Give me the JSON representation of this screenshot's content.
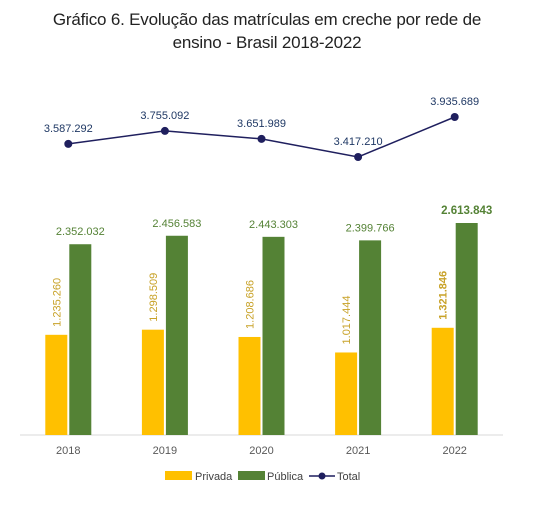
{
  "title": {
    "line1": "Gráfico 6. Evolução das matrículas em creche por rede de",
    "line2": "ensino - Brasil 2018-2022"
  },
  "chart_data": {
    "type": "bar",
    "title": "Gráfico 6. Evolução das matrículas em creche por rede de ensino - Brasil 2018-2022",
    "categories": [
      "2018",
      "2019",
      "2020",
      "2021",
      "2022"
    ],
    "series": [
      {
        "name": "Privada",
        "kind": "bar",
        "color": "#ffc000",
        "label_color": "#c8a228",
        "values": [
          1235260,
          1298509,
          1208686,
          1017444,
          1321846
        ],
        "labels": [
          "1.235.260",
          "1.298.509",
          "1.208.686",
          "1.017.444",
          "1.321.846"
        ]
      },
      {
        "name": "Pública",
        "kind": "bar",
        "color": "#548235",
        "label_color": "#548235",
        "values": [
          2352032,
          2456583,
          2443303,
          2399766,
          2613843
        ],
        "labels": [
          "2.352.032",
          "2.456.583",
          "2.443.303",
          "2.399.766",
          "2.613.843"
        ]
      },
      {
        "name": "Total",
        "kind": "line",
        "color": "#1f1f5e",
        "label_color": "#1f3864",
        "values": [
          3587292,
          3755092,
          3651989,
          3417210,
          3935689
        ],
        "labels": [
          "3.587.292",
          "3.755.092",
          "3.651.989",
          "3.417.210",
          "3.935.689"
        ]
      }
    ],
    "legend": "bottom",
    "grid": false
  }
}
